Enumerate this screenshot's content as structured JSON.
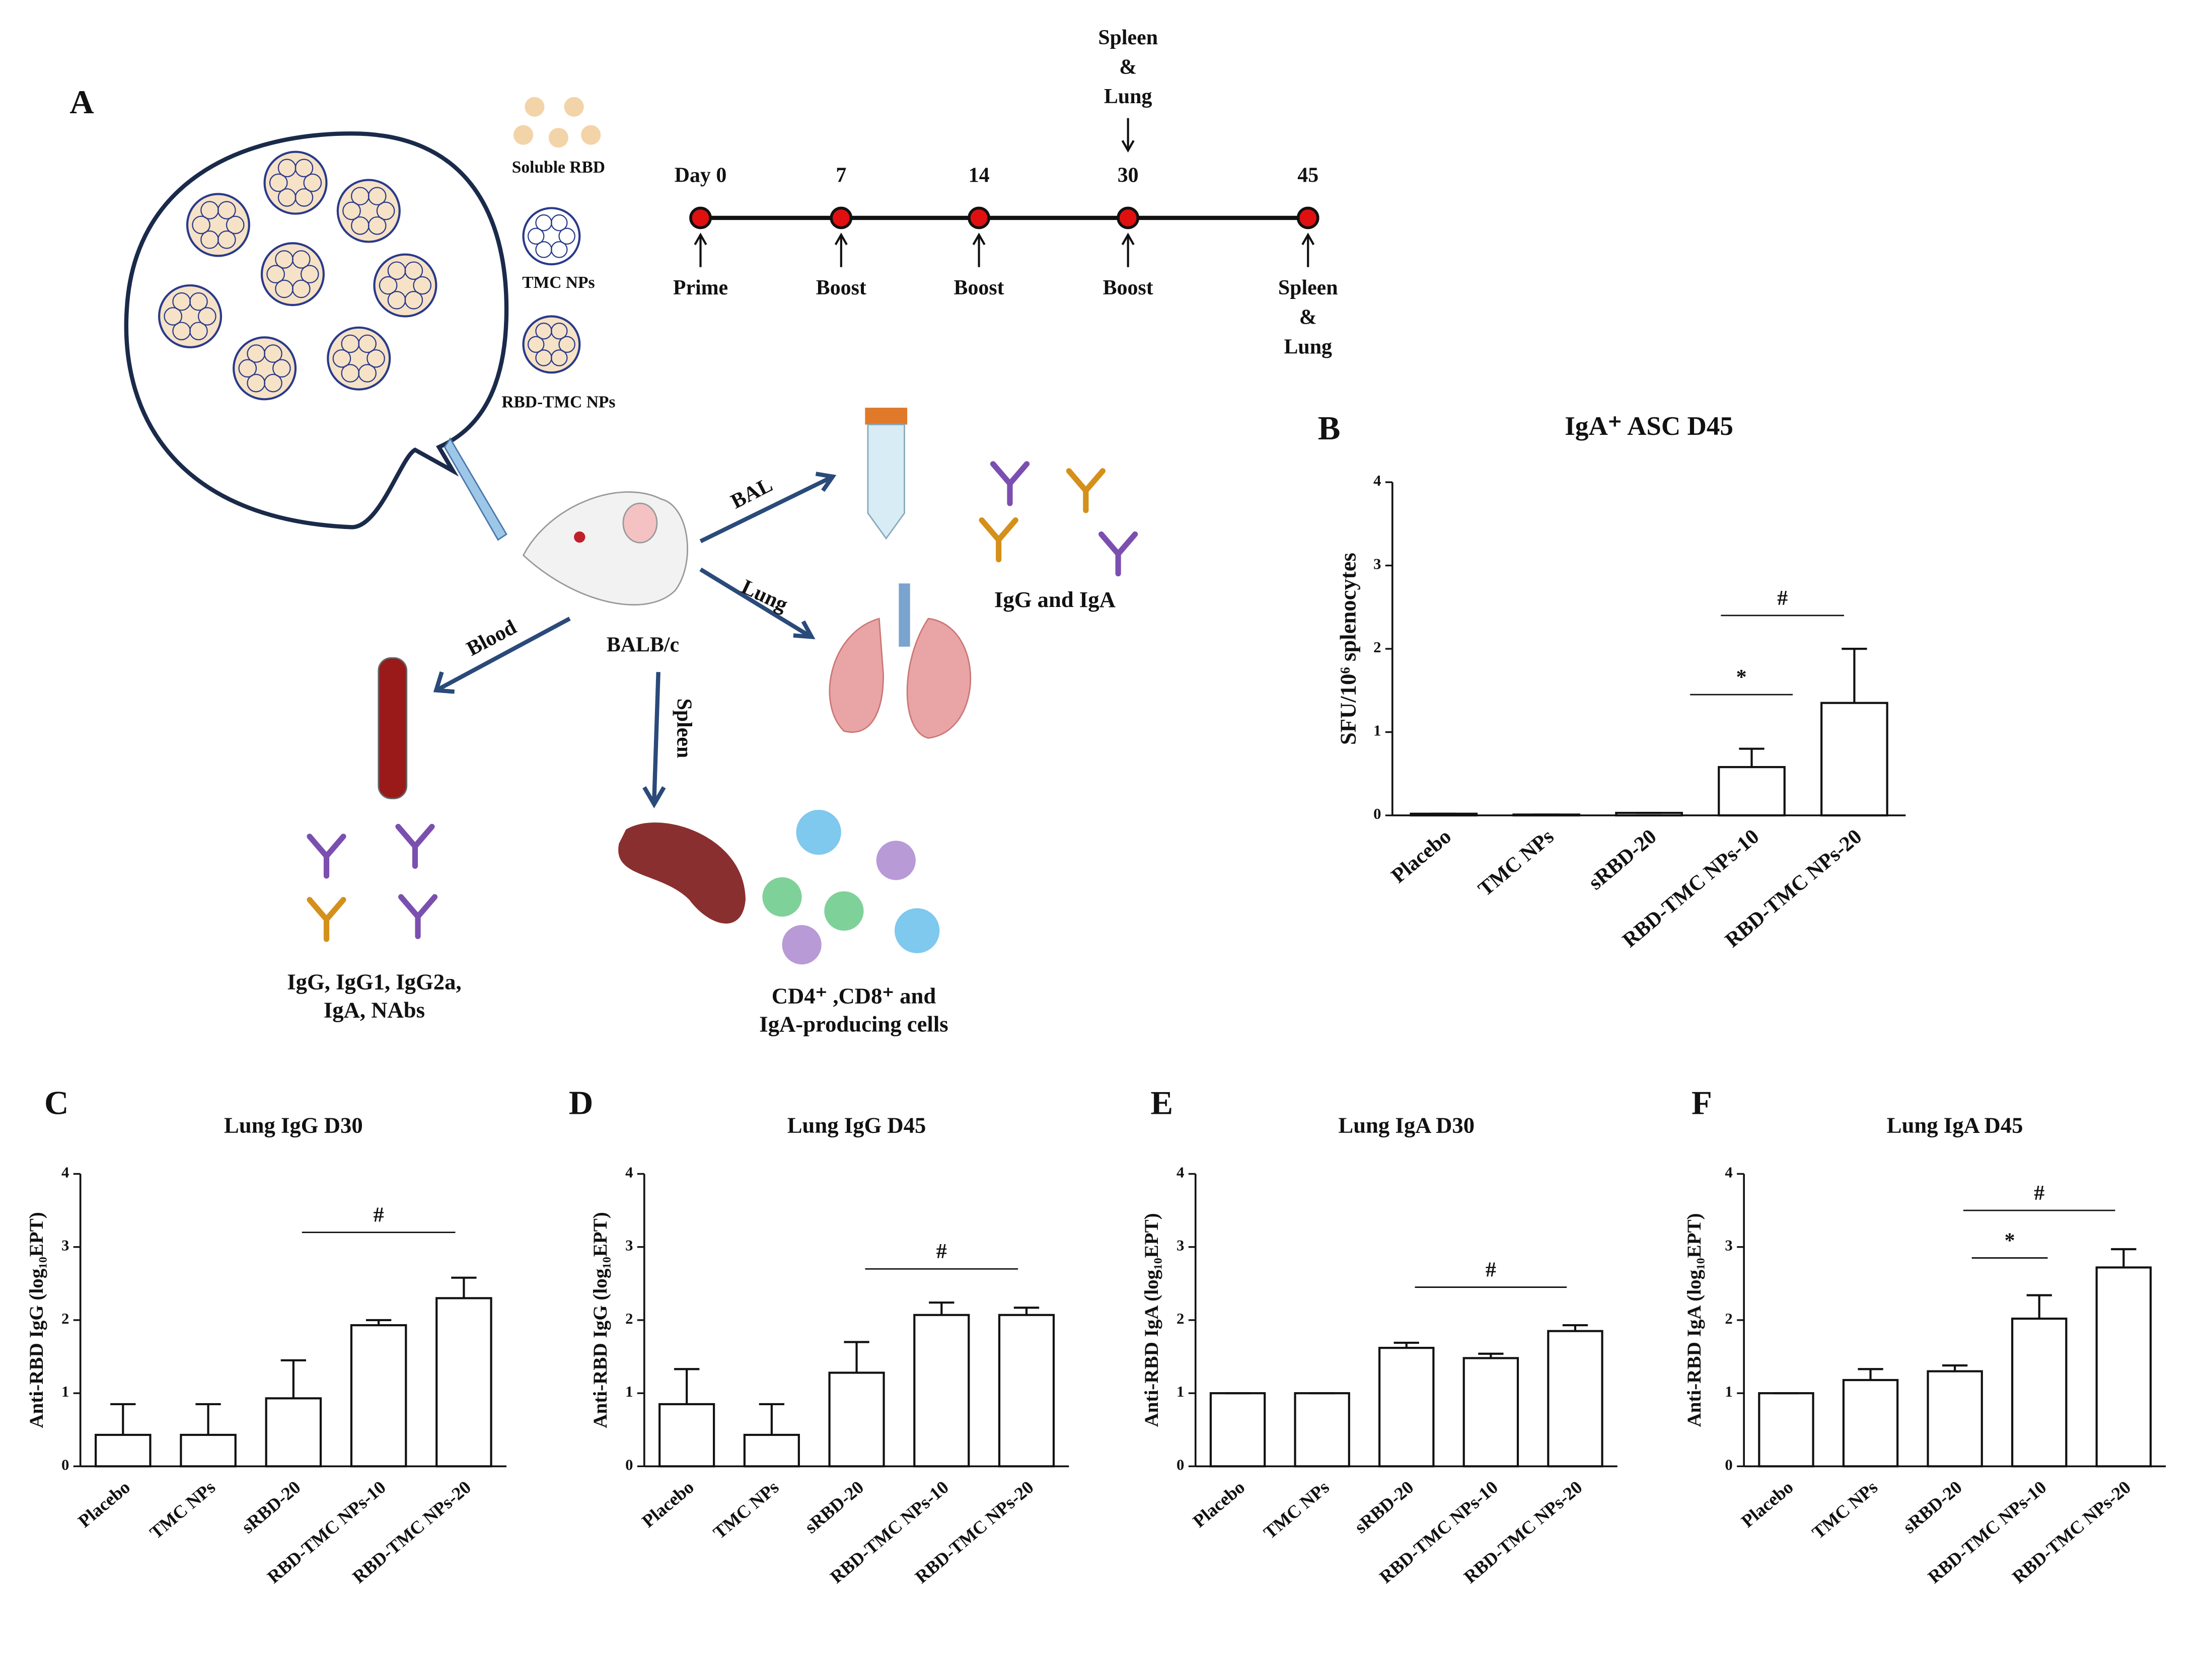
{
  "panel_a": {
    "label": "A",
    "legend": [
      "Soluble RBD",
      "TMC NPs",
      "RBD-TMC NPs"
    ],
    "timeline": [
      {
        "day": "Day 0",
        "below": [
          "Prime"
        ]
      },
      {
        "day": "7",
        "below": [
          "Boost"
        ]
      },
      {
        "day": "14",
        "below": [
          "Boost"
        ]
      },
      {
        "day": "30",
        "above": [
          "Spleen",
          "&",
          "Lung"
        ],
        "below": [
          "Boost"
        ]
      },
      {
        "day": "45",
        "below": [
          "Spleen",
          "&",
          "Lung"
        ]
      }
    ],
    "mouse": "BALB/c",
    "routes": [
      "BAL",
      "Lung",
      "Blood",
      "Spleen"
    ],
    "bal_readout": "IgG  and IgA",
    "blood_readout": [
      "IgG, IgG1, IgG2a,",
      "IgA, NAbs"
    ],
    "spleen_readout": [
      "CD4⁺ ,CD8⁺ and",
      "IgA-producing cells"
    ]
  },
  "chart_data": [
    {
      "type": "bar",
      "panel": "B",
      "title": "IgA⁺ ASC D45",
      "y_label": "SFU/10⁶ splenocytes",
      "categories": [
        "Placebo",
        "TMC NPs",
        "sRBD-20",
        "RBD-TMC NPs-10",
        "RBD-TMC NPs-20"
      ],
      "values": [
        0.02,
        0.01,
        0.03,
        0.58,
        1.35
      ],
      "errors": [
        0,
        0,
        0,
        0.22,
        0.65
      ],
      "ylim": [
        0,
        4
      ],
      "yticks": [
        0,
        1,
        2,
        3,
        4
      ],
      "annotations": [
        "*",
        "#"
      ],
      "color": "#ffffff"
    },
    {
      "type": "bar",
      "panel": "C",
      "title": "Lung IgG D30",
      "y_label": "Anti-RBD IgG (log₁₀EPT)",
      "categories": [
        "Placebo",
        "TMC NPs",
        "sRBD-20",
        "RBD-TMC NPs-10",
        "RBD-TMC NPs-20"
      ],
      "values": [
        0.43,
        0.43,
        0.93,
        1.93,
        2.3
      ],
      "errors": [
        0.42,
        0.42,
        0.52,
        0.07,
        0.28
      ],
      "ylim": [
        0,
        4
      ],
      "yticks": [
        0,
        1,
        2,
        3,
        4
      ],
      "annotations": [
        "#"
      ],
      "color": "#ffffff"
    },
    {
      "type": "bar",
      "panel": "D",
      "title": "Lung IgG D45",
      "y_label": "Anti-RBD IgG (log₁₀EPT)",
      "categories": [
        "Placebo",
        "TMC NPs",
        "sRBD-20",
        "RBD-TMC NPs-10",
        "RBD-TMC NPs-20"
      ],
      "values": [
        0.85,
        0.43,
        1.28,
        2.07,
        2.07
      ],
      "errors": [
        0.48,
        0.42,
        0.42,
        0.17,
        0.1
      ],
      "ylim": [
        0,
        4
      ],
      "yticks": [
        0,
        1,
        2,
        3,
        4
      ],
      "annotations": [
        "#"
      ],
      "color": "#ffffff"
    },
    {
      "type": "bar",
      "panel": "E",
      "title": "Lung IgA D30",
      "y_label": "Anti-RBD IgA (log₁₀EPT)",
      "categories": [
        "Placebo",
        "TMC NPs",
        "sRBD-20",
        "RBD-TMC NPs-10",
        "RBD-TMC NPs-20"
      ],
      "values": [
        1.0,
        1.0,
        1.62,
        1.48,
        1.85
      ],
      "errors": [
        0,
        0,
        0.07,
        0.06,
        0.08
      ],
      "ylim": [
        0,
        4
      ],
      "yticks": [
        0,
        1,
        2,
        3,
        4
      ],
      "annotations": [
        "#"
      ],
      "color": "#ffffff"
    },
    {
      "type": "bar",
      "panel": "F",
      "title": "Lung IgA D45",
      "y_label": "Anti-RBD IgA (log₁₀EPT)",
      "categories": [
        "Placebo",
        "TMC NPs",
        "sRBD-20",
        "RBD-TMC NPs-10",
        "RBD-TMC NPs-20"
      ],
      "values": [
        1.0,
        1.18,
        1.3,
        2.02,
        2.72
      ],
      "errors": [
        0,
        0.15,
        0.08,
        0.32,
        0.25
      ],
      "ylim": [
        0,
        4
      ],
      "yticks": [
        0,
        1,
        2,
        3,
        4
      ],
      "annotations": [
        "*",
        "#"
      ],
      "color": "#ffffff"
    }
  ]
}
